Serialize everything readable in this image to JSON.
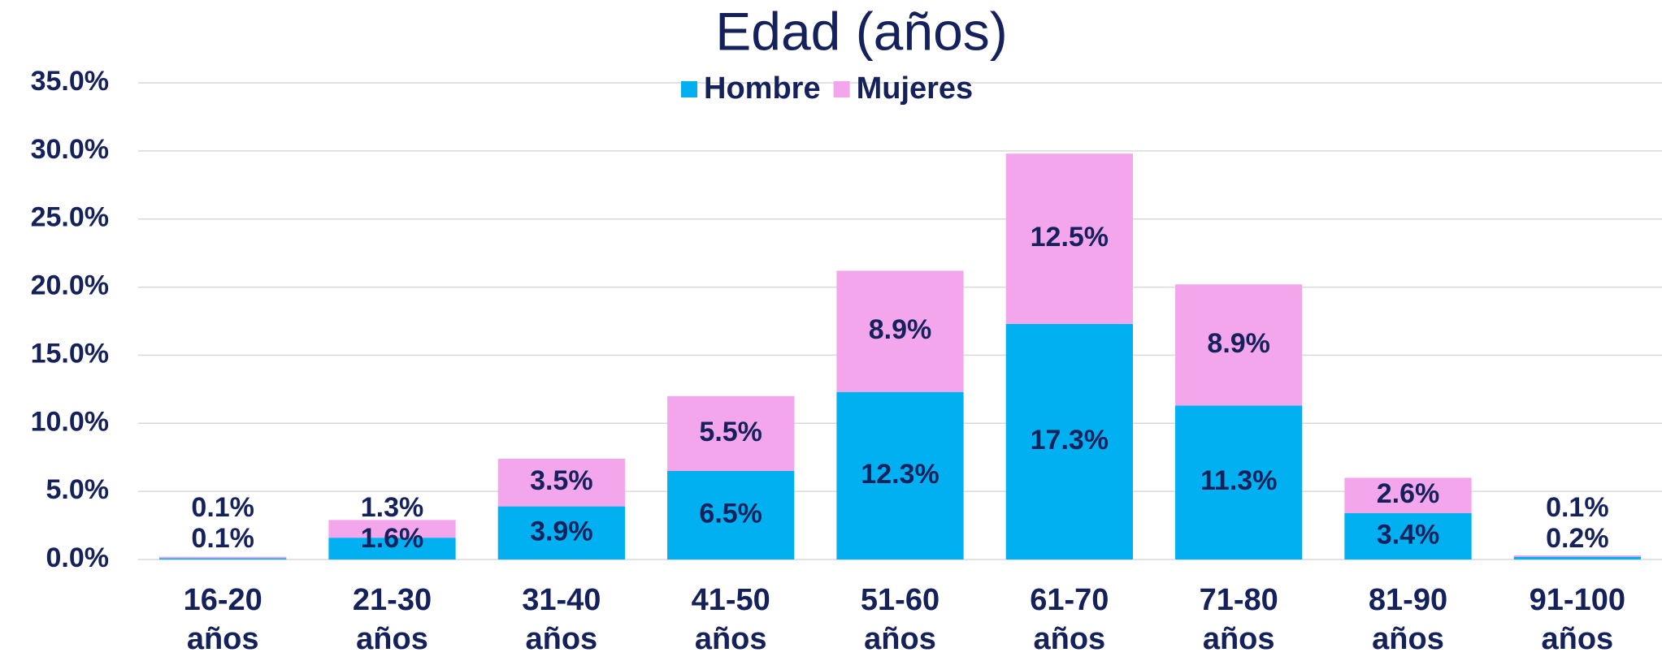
{
  "chart_data": {
    "type": "stacked_bar",
    "title": "Edad (años)",
    "categories": [
      "16-20 años",
      "21-30 años",
      "31-40 años",
      "41-50 años",
      "51-60 años",
      "61-70 años",
      "71-80 años",
      "81-90 años",
      "91-100 años"
    ],
    "series": [
      {
        "name": "Hombre",
        "color": "#00b0f0",
        "values": [
          0.1,
          1.6,
          3.9,
          6.5,
          12.3,
          17.3,
          11.3,
          3.4,
          0.2
        ],
        "value_labels": [
          "0.1%",
          "1.6%",
          "3.9%",
          "6.5%",
          "12.3%",
          "17.3%",
          "11.3%",
          "3.4%",
          "0.2%"
        ]
      },
      {
        "name": "Mujeres",
        "color": "#f4a6ec",
        "values": [
          0.1,
          1.3,
          3.5,
          5.5,
          8.9,
          12.5,
          8.9,
          2.6,
          0.1
        ],
        "value_labels": [
          "0.1%",
          "1.3%",
          "3.5%",
          "5.5%",
          "8.9%",
          "12.5%",
          "8.9%",
          "2.6%",
          "0.1%"
        ]
      }
    ],
    "ylim": [
      0,
      35
    ],
    "yticks": [
      {
        "value": 0,
        "label": "0.0%"
      },
      {
        "value": 5,
        "label": "5.0%"
      },
      {
        "value": 10,
        "label": "10.0%"
      },
      {
        "value": 15,
        "label": "15.0%"
      },
      {
        "value": 20,
        "label": "20.0%"
      },
      {
        "value": 25,
        "label": "25.0%"
      },
      {
        "value": 30,
        "label": "30.0%"
      },
      {
        "value": 35,
        "label": "35.0%"
      }
    ],
    "grid": true,
    "legend": "top"
  }
}
